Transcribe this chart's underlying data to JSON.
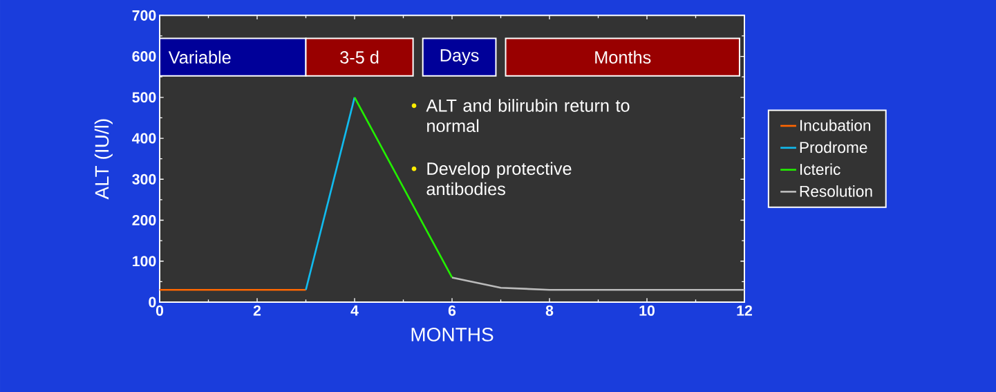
{
  "chart_data": {
    "type": "line",
    "xlabel": "MONTHS",
    "ylabel": "ALT (IU/l)",
    "xlim": [
      0,
      12
    ],
    "xticks": [
      0,
      2,
      4,
      6,
      8,
      10,
      12
    ],
    "ylim": [
      0,
      700
    ],
    "yticks": [
      0,
      100,
      200,
      300,
      400,
      500,
      600,
      700
    ],
    "grid": false,
    "legend": "right",
    "marker": "none",
    "line_style": "solid",
    "series": [
      {
        "name": "Incubation",
        "color": "#ff6600",
        "x": [
          0,
          3
        ],
        "values": [
          30,
          30
        ]
      },
      {
        "name": "Prodrome",
        "color": "#11bbee",
        "x": [
          3,
          4
        ],
        "values": [
          30,
          500
        ]
      },
      {
        "name": "Icteric",
        "color": "#22ee00",
        "x": [
          4,
          6
        ],
        "values": [
          500,
          60
        ]
      },
      {
        "name": "Resolution",
        "color": "#bbbbbb",
        "x": [
          6,
          7,
          8,
          12
        ],
        "values": [
          60,
          35,
          30,
          30
        ]
      }
    ],
    "bands": [
      {
        "axis": "x",
        "from": 0,
        "to": 3,
        "label": "Variable",
        "color": "#000099"
      },
      {
        "axis": "x",
        "from": 3,
        "to": 5.2,
        "label": "3-5 d",
        "color": "#990000"
      },
      {
        "axis": "x",
        "from": 5.4,
        "to": 6.9,
        "label": "Days",
        "color": "#000099"
      },
      {
        "axis": "x",
        "from": 7.1,
        "to": 11.9,
        "label": "Months",
        "color": "#990000"
      }
    ],
    "annotations": [
      "ALT and bilirubin return to normal",
      "Develop protective antibodies"
    ]
  }
}
